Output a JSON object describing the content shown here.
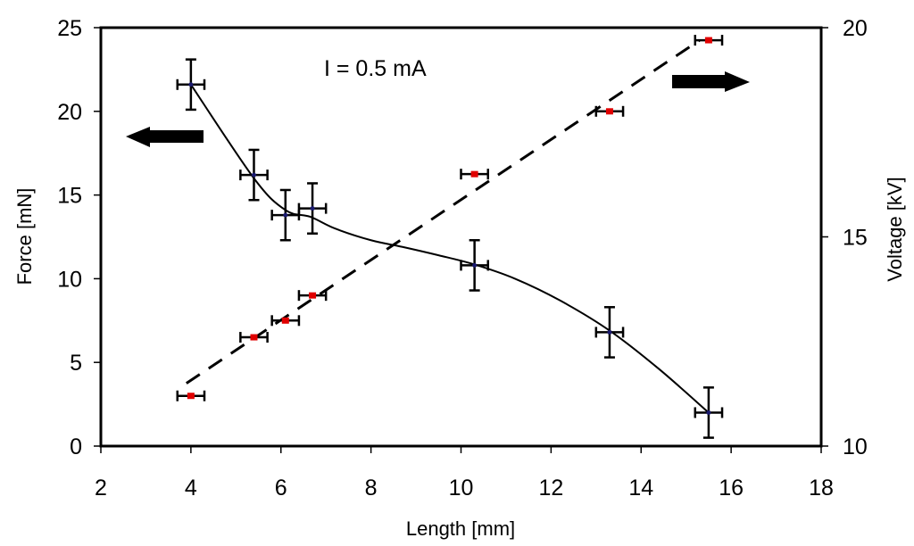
{
  "chart_data": {
    "type": "scatter",
    "title": "",
    "annotation": "I = 0.5 mA",
    "xlabel": "Length [mm]",
    "ylabel": "Force [mN]",
    "y2label": "Voltage [kV]",
    "xlim": [
      2,
      18
    ],
    "ylim": [
      0,
      25
    ],
    "y2lim": [
      10,
      20
    ],
    "xticks": [
      "2",
      "4",
      "6",
      "8",
      "10",
      "12",
      "14",
      "16",
      "18"
    ],
    "yticks": [
      "0",
      "5",
      "10",
      "15",
      "20",
      "25"
    ],
    "y2ticks": [
      "10",
      "15",
      "20"
    ],
    "grid": false,
    "arrows": [
      {
        "name": "force-axis-arrow",
        "direction": "left",
        "points_to": "Force [mN]"
      },
      {
        "name": "voltage-axis-arrow",
        "direction": "right",
        "points_to": "Voltage [kV]"
      }
    ],
    "series": [
      {
        "name": "Force",
        "axis": "left",
        "marker_color": "#1a1a6e",
        "fit": "smooth curve (solid)",
        "x": [
          4.0,
          5.4,
          6.1,
          6.7,
          10.3,
          13.3,
          15.5
        ],
        "y": [
          21.6,
          16.2,
          13.8,
          14.2,
          10.8,
          6.8,
          2.0
        ],
        "x_err": [
          0.3,
          0.3,
          0.3,
          0.3,
          0.3,
          0.3,
          0.3
        ],
        "y_err": [
          1.5,
          1.5,
          1.5,
          1.5,
          1.5,
          1.5,
          1.5
        ],
        "fit_curve": [
          [
            4.0,
            21.6
          ],
          [
            5.4,
            16.0
          ],
          [
            6.1,
            14.1
          ],
          [
            6.65,
            13.7
          ],
          [
            7.2,
            13.0
          ],
          [
            8.0,
            12.3
          ],
          [
            8.7,
            11.9
          ],
          [
            9.5,
            11.4
          ],
          [
            10.3,
            10.85
          ],
          [
            11.2,
            10.0
          ],
          [
            12.2,
            8.7
          ],
          [
            13.3,
            6.9
          ],
          [
            14.4,
            4.6
          ],
          [
            15.5,
            2.0
          ]
        ]
      },
      {
        "name": "Voltage",
        "axis": "right",
        "marker_color": "#e00000",
        "fit": "linear (dashed)",
        "x": [
          4.0,
          5.4,
          6.1,
          6.7,
          10.3,
          13.3,
          15.5
        ],
        "y": [
          11.2,
          12.6,
          13.0,
          13.6,
          16.5,
          18.0,
          19.7
        ],
        "x_err": [
          0.3,
          0.3,
          0.3,
          0.3,
          0.3,
          0.3,
          0.3
        ],
        "fit_line": [
          [
            3.9,
            11.5
          ],
          [
            15.3,
            19.7
          ]
        ]
      }
    ]
  }
}
